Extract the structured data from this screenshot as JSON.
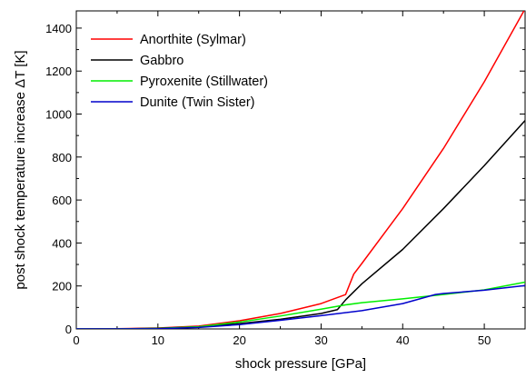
{
  "chart_data": {
    "type": "line",
    "xlabel": "shock pressure [GPa]",
    "ylabel": "post shock temperature increase ΔT [K]",
    "xlim": [
      0,
      55
    ],
    "ylim": [
      0,
      1480
    ],
    "x_ticks": [
      0,
      10,
      20,
      30,
      40,
      50
    ],
    "y_ticks": [
      0,
      200,
      400,
      600,
      800,
      1000,
      1200,
      1400
    ],
    "x_minor_step": 5,
    "y_minor_step": 100,
    "grid": false,
    "legend_position": "top-left",
    "series": [
      {
        "name": "Anorthite (Sylmar)",
        "color": "#ff0000",
        "points": [
          [
            0,
            0
          ],
          [
            5,
            1
          ],
          [
            10,
            4
          ],
          [
            15,
            13
          ],
          [
            20,
            38
          ],
          [
            25,
            72
          ],
          [
            30,
            118
          ],
          [
            33,
            160
          ],
          [
            34,
            255
          ],
          [
            35,
            305
          ],
          [
            40,
            560
          ],
          [
            45,
            840
          ],
          [
            50,
            1150
          ],
          [
            55,
            1490
          ]
        ]
      },
      {
        "name": "Gabbro",
        "color": "#000000",
        "points": [
          [
            0,
            0
          ],
          [
            5,
            0
          ],
          [
            10,
            3
          ],
          [
            15,
            10
          ],
          [
            20,
            25
          ],
          [
            25,
            45
          ],
          [
            30,
            72
          ],
          [
            32,
            90
          ],
          [
            33,
            135
          ],
          [
            35,
            210
          ],
          [
            40,
            370
          ],
          [
            45,
            560
          ],
          [
            50,
            760
          ],
          [
            55,
            970
          ]
        ]
      },
      {
        "name": "Pyroxenite (Stillwater)",
        "color": "#00ee00",
        "points": [
          [
            0,
            0
          ],
          [
            5,
            0
          ],
          [
            10,
            2
          ],
          [
            15,
            10
          ],
          [
            20,
            32
          ],
          [
            25,
            60
          ],
          [
            30,
            92
          ],
          [
            33,
            112
          ],
          [
            35,
            122
          ],
          [
            40,
            140
          ],
          [
            45,
            160
          ],
          [
            50,
            182
          ],
          [
            55,
            218
          ]
        ]
      },
      {
        "name": "Dunite (Twin Sister)",
        "color": "#0000cc",
        "points": [
          [
            0,
            0
          ],
          [
            5,
            0
          ],
          [
            10,
            1
          ],
          [
            15,
            7
          ],
          [
            20,
            20
          ],
          [
            25,
            40
          ],
          [
            30,
            62
          ],
          [
            35,
            85
          ],
          [
            40,
            118
          ],
          [
            44,
            160
          ],
          [
            45,
            165
          ],
          [
            50,
            180
          ],
          [
            55,
            202
          ]
        ]
      }
    ]
  }
}
